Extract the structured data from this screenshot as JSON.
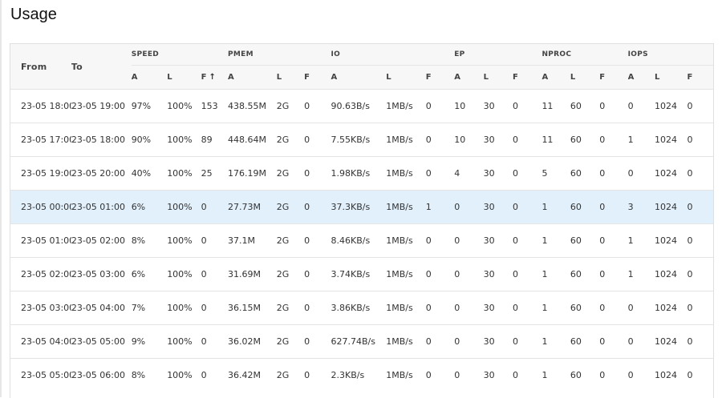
{
  "page": {
    "title": "Usage"
  },
  "table": {
    "col_from": "From",
    "col_to": "To",
    "groups": [
      {
        "label": "SPEED",
        "subs": [
          "A",
          "L",
          "F"
        ]
      },
      {
        "label": "PMEM",
        "subs": [
          "A",
          "L",
          "F"
        ]
      },
      {
        "label": "IO",
        "subs": [
          "A",
          "L",
          "F"
        ]
      },
      {
        "label": "EP",
        "subs": [
          "A",
          "L",
          "F"
        ]
      },
      {
        "label": "NPROC",
        "subs": [
          "A",
          "L",
          "F"
        ]
      },
      {
        "label": "IOPS",
        "subs": [
          "A",
          "L",
          "F"
        ]
      }
    ],
    "sort_icon": "↑",
    "selected_row_index": 3,
    "rows": [
      {
        "from": "23-05 18:00",
        "to": "23-05 19:00",
        "cells": [
          "97%",
          "100%",
          "153",
          "438.55M",
          "2G",
          "0",
          "90.63B/s",
          "1MB/s",
          "0",
          "10",
          "30",
          "0",
          "11",
          "60",
          "0",
          "0",
          "1024",
          "0"
        ]
      },
      {
        "from": "23-05 17:00",
        "to": "23-05 18:00",
        "cells": [
          "90%",
          "100%",
          "89",
          "448.64M",
          "2G",
          "0",
          "7.55KB/s",
          "1MB/s",
          "0",
          "10",
          "30",
          "0",
          "11",
          "60",
          "0",
          "1",
          "1024",
          "0"
        ]
      },
      {
        "from": "23-05 19:00",
        "to": "23-05 20:00",
        "cells": [
          "40%",
          "100%",
          "25",
          "176.19M",
          "2G",
          "0",
          "1.98KB/s",
          "1MB/s",
          "0",
          "4",
          "30",
          "0",
          "5",
          "60",
          "0",
          "0",
          "1024",
          "0"
        ]
      },
      {
        "from": "23-05 00:00",
        "to": "23-05 01:00",
        "cells": [
          "6%",
          "100%",
          "0",
          "27.73M",
          "2G",
          "0",
          "37.3KB/s",
          "1MB/s",
          "1",
          "0",
          "30",
          "0",
          "1",
          "60",
          "0",
          "3",
          "1024",
          "0"
        ]
      },
      {
        "from": "23-05 01:00",
        "to": "23-05 02:00",
        "cells": [
          "8%",
          "100%",
          "0",
          "37.1M",
          "2G",
          "0",
          "8.46KB/s",
          "1MB/s",
          "0",
          "0",
          "30",
          "0",
          "1",
          "60",
          "0",
          "1",
          "1024",
          "0"
        ]
      },
      {
        "from": "23-05 02:00",
        "to": "23-05 03:00",
        "cells": [
          "6%",
          "100%",
          "0",
          "31.69M",
          "2G",
          "0",
          "3.74KB/s",
          "1MB/s",
          "0",
          "0",
          "30",
          "0",
          "1",
          "60",
          "0",
          "1",
          "1024",
          "0"
        ]
      },
      {
        "from": "23-05 03:00",
        "to": "23-05 04:00",
        "cells": [
          "7%",
          "100%",
          "0",
          "36.15M",
          "2G",
          "0",
          "3.86KB/s",
          "1MB/s",
          "0",
          "0",
          "30",
          "0",
          "1",
          "60",
          "0",
          "0",
          "1024",
          "0"
        ]
      },
      {
        "from": "23-05 04:00",
        "to": "23-05 05:00",
        "cells": [
          "9%",
          "100%",
          "0",
          "36.02M",
          "2G",
          "0",
          "627.74B/s",
          "1MB/s",
          "0",
          "0",
          "30",
          "0",
          "1",
          "60",
          "0",
          "0",
          "1024",
          "0"
        ]
      },
      {
        "from": "23-05 05:00",
        "to": "23-05 06:00",
        "cells": [
          "8%",
          "100%",
          "0",
          "36.42M",
          "2G",
          "0",
          "2.3KB/s",
          "1MB/s",
          "0",
          "0",
          "30",
          "0",
          "1",
          "60",
          "0",
          "0",
          "1024",
          "0"
        ]
      }
    ]
  }
}
